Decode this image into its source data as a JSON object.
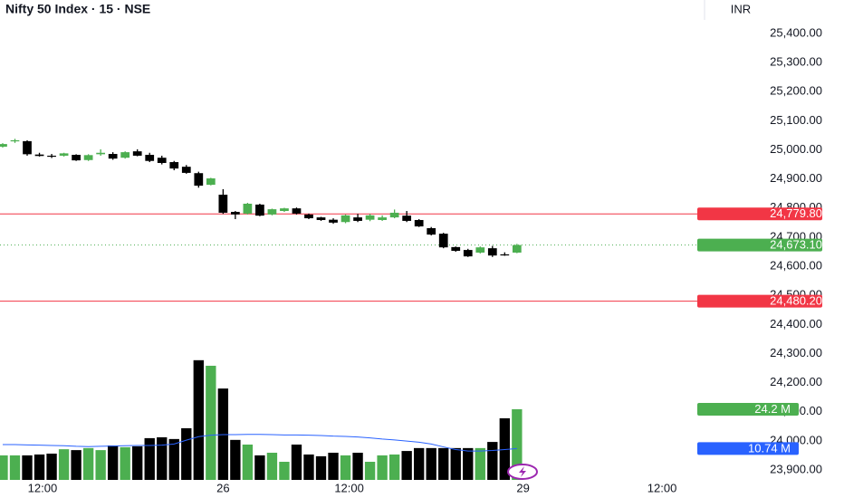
{
  "chart_data": {
    "type": "candlestick",
    "title": "Nifty 50 Index · 15 · NSE",
    "currency": "INR",
    "up_color": "#4caf50",
    "down_color": "#000000",
    "x": [
      0,
      1,
      2,
      3,
      4,
      5,
      6,
      7,
      8,
      9,
      10,
      11,
      12,
      13,
      14,
      15,
      16,
      17,
      18,
      19,
      20,
      21,
      22,
      23,
      24,
      25,
      26,
      27,
      28,
      29,
      30,
      31,
      32,
      33,
      34,
      35,
      36,
      37,
      38,
      39,
      40,
      41,
      42
    ],
    "xlim": [
      -0.22,
      56.73
    ],
    "xticks": [
      {
        "value": 3.25,
        "label": "12:00"
      },
      {
        "value": 18,
        "label": "26"
      },
      {
        "value": 28.3,
        "label": "12:00"
      },
      {
        "value": 42.5,
        "label": "29"
      },
      {
        "value": 53.85,
        "label": "12:00"
      }
    ],
    "ylim": [
      23866,
      25515
    ],
    "yticks": [
      {
        "value": 25400,
        "label": "25,400.00"
      },
      {
        "value": 25300,
        "label": "25,300.00"
      },
      {
        "value": 25200,
        "label": "25,200.00"
      },
      {
        "value": 25100,
        "label": "25,100.00"
      },
      {
        "value": 25000,
        "label": "25,000.00"
      },
      {
        "value": 24900,
        "label": "24,900.00"
      },
      {
        "value": 24800,
        "label": "24,800.00"
      },
      {
        "value": 24700,
        "label": "24,700.00"
      },
      {
        "value": 24600,
        "label": "24,600.00"
      },
      {
        "value": 24500,
        "label": "24,500.00"
      },
      {
        "value": 24400,
        "label": "24,400.00"
      },
      {
        "value": 24300,
        "label": "24,300.00"
      },
      {
        "value": 24200,
        "label": "24,200.00"
      },
      {
        "value": 24100,
        "label": "24,100.00"
      },
      {
        "value": 24000,
        "label": "24,000.00"
      },
      {
        "value": 23900,
        "label": "23,900.00"
      }
    ],
    "open": [
      25011,
      25030,
      25030,
      24984,
      24980,
      24980,
      24983,
      24965,
      24985,
      24986,
      24973,
      24995,
      24983,
      24973,
      24958,
      24942,
      24920,
      24880,
      24846,
      24787,
      24781,
      24812,
      24778,
      24790,
      24799,
      24778,
      24768,
      24760,
      24752,
      24768,
      24760,
      24759,
      24768,
      24774,
      24759,
      24731,
      24712,
      24666,
      24656,
      24647,
      24662,
      24641,
      24647
    ],
    "high": [
      25023,
      25038,
      25033,
      24990,
      24986,
      24990,
      24985,
      24985,
      25002,
      24992,
      24995,
      25002,
      24990,
      24980,
      24962,
      24948,
      24925,
      24904,
      24865,
      24790,
      24818,
      24815,
      24798,
      24801,
      24802,
      24781,
      24770,
      24765,
      24778,
      24780,
      24780,
      24775,
      24795,
      24790,
      24762,
      24735,
      24715,
      24668,
      24660,
      24668,
      24670,
      24648,
      24677
    ],
    "low": [
      25008,
      25024,
      24980,
      24977,
      24972,
      24977,
      24962,
      24962,
      24980,
      24966,
      24970,
      24978,
      24958,
      24950,
      24930,
      24918,
      24870,
      24878,
      24780,
      24762,
      24778,
      24772,
      24775,
      24787,
      24778,
      24762,
      24756,
      24746,
      24748,
      24752,
      24755,
      24756,
      24765,
      24752,
      24735,
      24706,
      24662,
      24650,
      24632,
      24644,
      24632,
      24636,
      24645
    ],
    "close": [
      25020,
      25033,
      24985,
      24979,
      24979,
      24988,
      24964,
      24982,
      24990,
      24970,
      24992,
      24980,
      24962,
      24955,
      24936,
      24921,
      24877,
      24902,
      24784,
      24778,
      24815,
      24774,
      24796,
      24799,
      24781,
      24765,
      24759,
      24750,
      24775,
      24756,
      24775,
      24768,
      24784,
      24756,
      24737,
      24709,
      24665,
      24653,
      24634,
      24665,
      24637,
      24640,
      24673.1
    ],
    "price_lines": [
      {
        "value": 24779.8,
        "label": "24,779.80",
        "color": "#f23645",
        "style": "solid"
      },
      {
        "value": 24673.1,
        "label": "24,673.10",
        "color": "#4caf50",
        "style": "dotted"
      },
      {
        "value": 24480.2,
        "label": "24,480.20",
        "color": "#f23645",
        "style": "solid"
      }
    ],
    "volume": {
      "ylim": [
        0,
        164.4
      ],
      "values": [
        8.4,
        8.4,
        8.4,
        8.7,
        9.0,
        10.5,
        10.2,
        10.9,
        10.2,
        11.8,
        11.2,
        11.5,
        14.3,
        14.6,
        14.0,
        17.7,
        41.0,
        39.1,
        31.3,
        13.7,
        12.1,
        8.4,
        9.3,
        6.2,
        12.1,
        8.7,
        8.1,
        9.3,
        8.4,
        9.3,
        6.2,
        8.4,
        8.7,
        9.9,
        10.9,
        10.9,
        10.9,
        10.9,
        10.9,
        10.9,
        13.0,
        21.1,
        24.2
      ],
      "ma": [
        12.1,
        12.1,
        12.0,
        11.9,
        11.8,
        11.7,
        11.5,
        11.4,
        11.5,
        11.6,
        11.7,
        11.8,
        11.8,
        11.9,
        12.3,
        13.6,
        14.8,
        15.3,
        15.5,
        15.5,
        15.6,
        15.6,
        15.5,
        15.4,
        15.4,
        15.3,
        15.2,
        15.0,
        14.9,
        14.7,
        14.4,
        14.0,
        13.7,
        13.3,
        12.9,
        12.3,
        11.3,
        10.4,
        9.9,
        9.9,
        10.1,
        10.4,
        10.74
      ],
      "ma_color": "#2962ff",
      "labels": [
        {
          "value": 24.2,
          "label": "24.2 M",
          "color": "#4caf50"
        },
        {
          "value": 10.74,
          "label": "10.74 M",
          "color": "#2962ff"
        }
      ]
    }
  }
}
